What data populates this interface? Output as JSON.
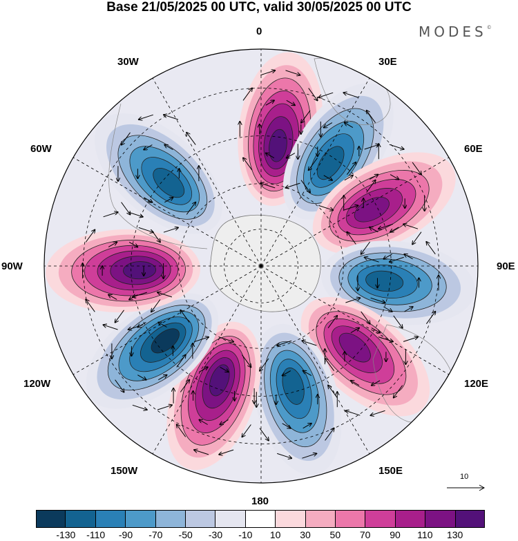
{
  "title": "Base 21/05/2025 00 UTC, valid 30/05/2025 00 UTC",
  "brand": {
    "text": "MODES",
    "mark": "©"
  },
  "longitude_labels": {
    "top": "0",
    "bottom": "180",
    "right": "90E",
    "left": "90W",
    "e30": "30E",
    "e60": "60E",
    "e120": "120E",
    "e150": "150E",
    "w30": "30W",
    "w60": "60W",
    "w120": "120W",
    "w150": "150W"
  },
  "projection": "south-polar-stereographic",
  "reference_vector": {
    "label": "10"
  },
  "colorbar": {
    "colors": [
      "#0b3a5c",
      "#136391",
      "#2a80b6",
      "#4d9ac9",
      "#8eb5d9",
      "#bcc8e2",
      "#e5e6f0",
      "#ffffff",
      "#fbd9dd",
      "#f5acc0",
      "#ec77aa",
      "#cf3e99",
      "#a81f8b",
      "#7c1283",
      "#531179"
    ],
    "tick_labels": [
      "-130",
      "-110",
      "-90",
      "-70",
      "-50",
      "-30",
      "-10",
      "10",
      "30",
      "50",
      "70",
      "90",
      "110",
      "130"
    ]
  },
  "anomaly_lobes": [
    {
      "sign": "positive",
      "value": 130,
      "direction": "N",
      "bearing_deg": 8
    },
    {
      "sign": "negative",
      "value": -110,
      "direction": "N",
      "bearing_deg": 34
    },
    {
      "sign": "positive",
      "value": 110,
      "direction": "NE",
      "bearing_deg": 63
    },
    {
      "sign": "negative",
      "value": -110,
      "direction": "E",
      "bearing_deg": 97
    },
    {
      "sign": "positive",
      "value": 110,
      "direction": "SE",
      "bearing_deg": 131
    },
    {
      "sign": "negative",
      "value": -110,
      "direction": "S",
      "bearing_deg": 165
    },
    {
      "sign": "positive",
      "value": 130,
      "direction": "S",
      "bearing_deg": 200
    },
    {
      "sign": "negative",
      "value": -130,
      "direction": "SW",
      "bearing_deg": 232
    },
    {
      "sign": "positive",
      "value": 130,
      "direction": "W",
      "bearing_deg": 268
    },
    {
      "sign": "negative",
      "value": -110,
      "direction": "NW",
      "bearing_deg": 312
    }
  ]
}
